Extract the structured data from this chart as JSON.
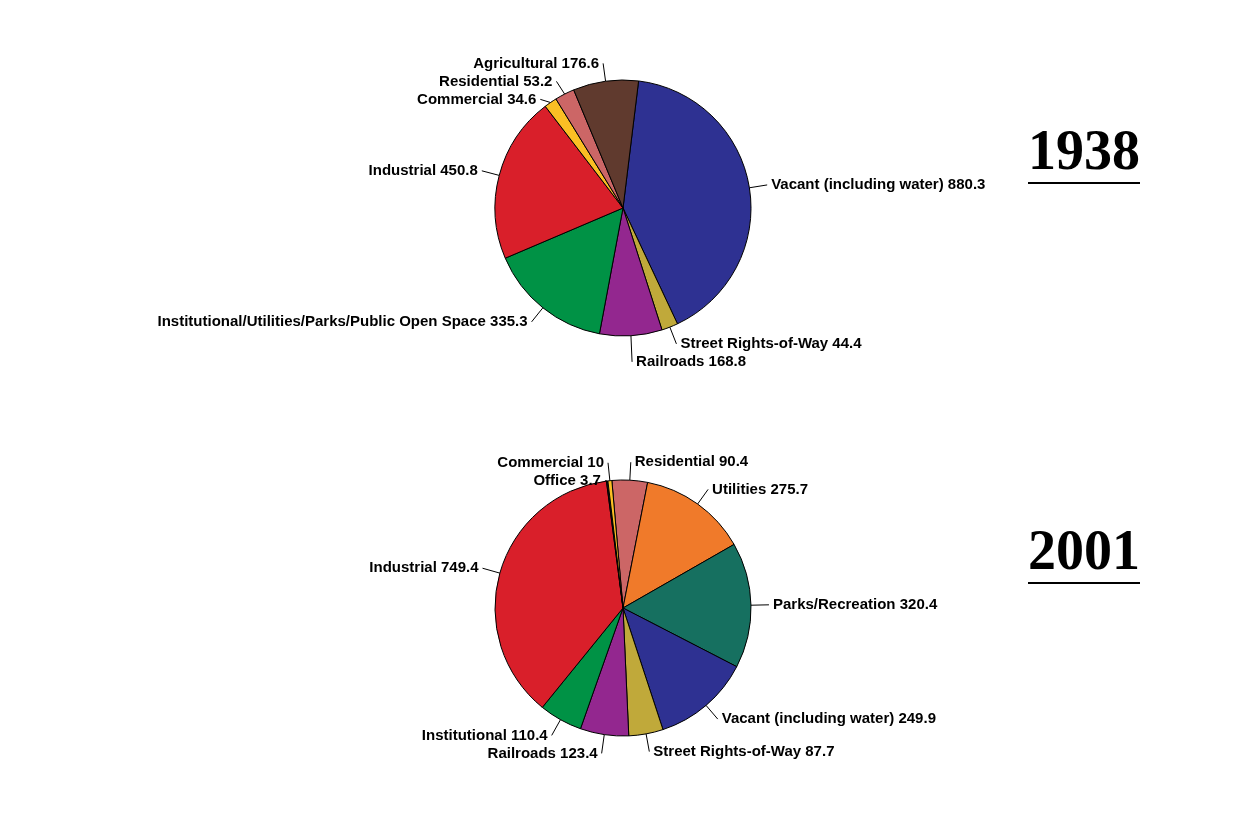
{
  "chart_data": [
    {
      "type": "pie",
      "title": "1938",
      "data_labels": true,
      "categories": [
        "Vacant (including water)",
        "Street Rights-of-Way",
        "Railroads",
        "Institutional/Utilities/Parks/Public Open Space",
        "Industrial",
        "Commercial",
        "Residential",
        "Agricultural"
      ],
      "values": [
        880.3,
        44.4,
        168.8,
        335.3,
        450.8,
        34.6,
        53.2,
        176.6
      ],
      "colors": [
        "#2e3192",
        "#c0a93a",
        "#93278f",
        "#009245",
        "#d91f2a",
        "#fbbf24",
        "#cc6666",
        "#603a2e"
      ]
    },
    {
      "type": "pie",
      "title": "2001",
      "data_labels": true,
      "categories": [
        "Residential",
        "Utilities",
        "Parks/Recreation",
        "Vacant (including water)",
        "Street Rights-of-Way",
        "Railroads",
        "Institutional",
        "Industrial",
        "Office",
        "Commercial"
      ],
      "values": [
        90.4,
        275.7,
        320.4,
        249.9,
        87.7,
        123.4,
        110.4,
        749.4,
        3.7,
        10
      ],
      "colors": [
        "#cc6666",
        "#f07a2a",
        "#167060",
        "#2e3192",
        "#c0a93a",
        "#93278f",
        "#009245",
        "#d91f2a",
        "#1a1a1a",
        "#fbbf24"
      ]
    }
  ]
}
